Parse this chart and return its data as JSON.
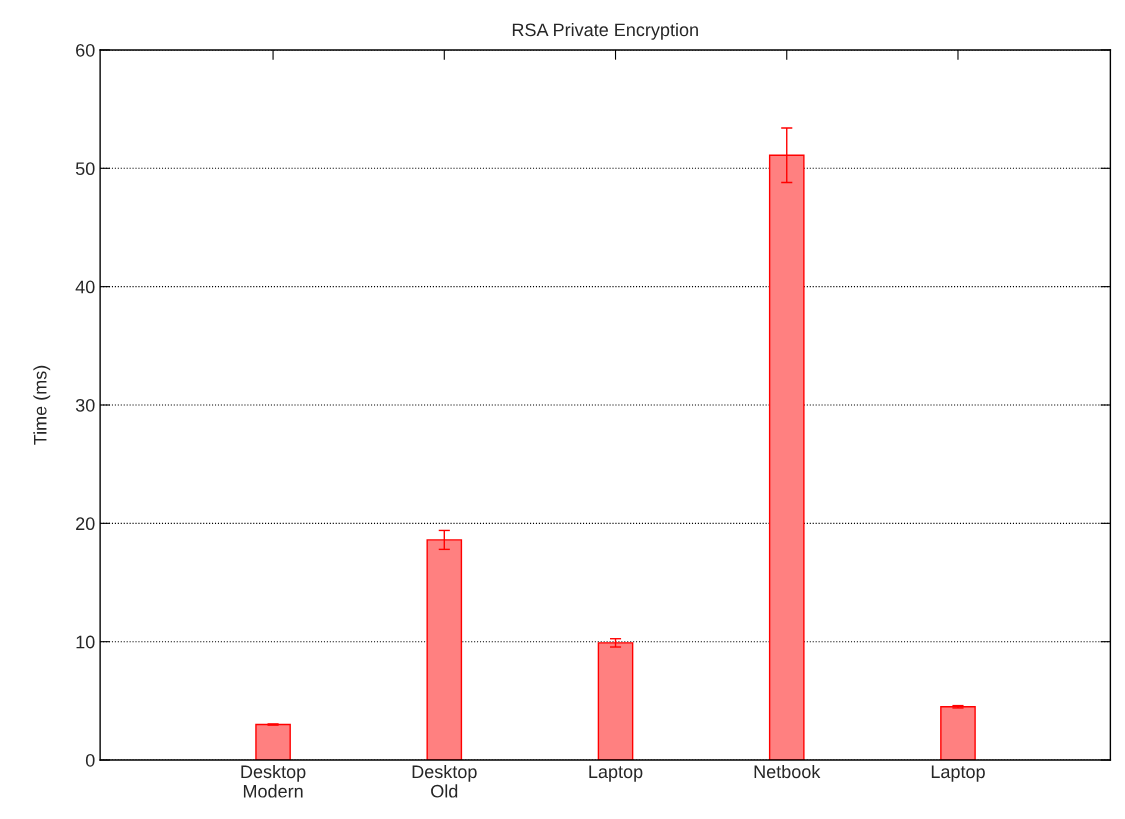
{
  "chart_data": {
    "type": "bar",
    "title": "RSA Private Encryption",
    "ylabel": "Time (ms)",
    "categories": [
      "Desktop\nModern",
      "Desktop\nOld",
      "Laptop",
      "Netbook",
      "Laptop"
    ],
    "values": [
      3.0,
      18.6,
      9.9,
      51.1,
      4.5
    ],
    "errors": [
      0.05,
      0.8,
      0.35,
      2.3,
      0.1
    ],
    "color": "#ff8080",
    "ylim": [
      0,
      60
    ],
    "yticks": [
      0,
      10,
      20,
      30,
      40,
      50,
      60
    ],
    "grid": "y"
  }
}
